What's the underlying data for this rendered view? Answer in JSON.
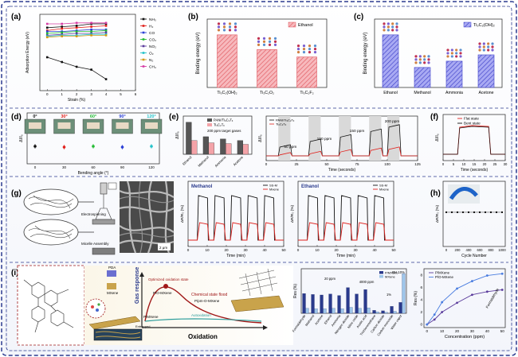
{
  "colors": {
    "frame": "#2b3a8f",
    "pink_bar": "#f4a3a8",
    "pink_edge": "#e0585f",
    "blue_bar": "#8e8ff0",
    "blue_edge": "#3f41c9",
    "black": "#111111",
    "red": "#e0201b",
    "green": "#22bb33",
    "blue": "#2a3fd6",
    "cyan": "#21c2c8",
    "gray_band": "#d9d9d9",
    "grey_bar": "#555555",
    "light_blue": "#9ec6ea",
    "navy": "#2a3a8c",
    "teal": "#2a9c9a",
    "purple": "#5b3c9c",
    "dashed": "#a01818"
  },
  "panels": {
    "a": {
      "label": "(a)"
    },
    "b": {
      "label": "(b)"
    },
    "c": {
      "label": "(c)"
    },
    "d": {
      "label": "(d)"
    },
    "e": {
      "label": "(e)"
    },
    "f": {
      "label": "(f)"
    },
    "g": {
      "label": "(g)"
    },
    "h": {
      "label": "(h)"
    },
    "i": {
      "label": "(i)"
    }
  },
  "chart_data": [
    {
      "id": "a",
      "type": "line",
      "ylabel": "Adsorption Energy (eV)",
      "xlabel": "Strain (%)",
      "x": [
        0,
        1,
        2,
        3,
        4
      ],
      "xticks": [
        "0",
        "1",
        "2",
        "3",
        "4",
        "5",
        "6"
      ],
      "xlim": [
        -0.5,
        6
      ],
      "ylim": [
        -0.75,
        0.05
      ],
      "series": [
        {
          "name": "NH₃",
          "color": "#111111",
          "values": [
            -0.09,
            -0.08,
            -0.07,
            -0.05,
            -0.05
          ]
        },
        {
          "name": "H₂",
          "color": "#e0201b",
          "values": [
            -0.12,
            -0.1,
            -0.09,
            -0.08,
            -0.07
          ]
        },
        {
          "name": "CO",
          "color": "#2a3fd6",
          "values": [
            -0.13,
            -0.13,
            -0.12,
            -0.11,
            -0.11
          ]
        },
        {
          "name": "CO₂",
          "color": "#22bb33",
          "values": [
            -0.15,
            -0.14,
            -0.13,
            -0.13,
            -0.12
          ]
        },
        {
          "name": "NO₂",
          "color": "#5b3c9c",
          "values": [
            -0.17,
            -0.16,
            -0.15,
            -0.15,
            -0.14
          ]
        },
        {
          "name": "O₂",
          "color": "#21c2c8",
          "values": [
            -0.18,
            -0.17,
            -0.17,
            -0.16,
            -0.16
          ]
        },
        {
          "name": "N₂",
          "color": "#d29a16",
          "values": [
            -0.19,
            -0.18,
            -0.18,
            -0.17,
            -0.17
          ]
        },
        {
          "name": "CH₄",
          "color": "#d63da4",
          "values": [
            -0.05,
            -0.05,
            -0.04,
            -0.04,
            -0.04
          ]
        },
        {
          "name": "",
          "color": "#111111",
          "values": [
            -0.4,
            -0.45,
            -0.5,
            -0.53,
            -0.63
          ]
        }
      ]
    },
    {
      "id": "b",
      "type": "bar",
      "ylabel": "Binding energy (eV)",
      "legend": "Ethanol",
      "categories": [
        "Ti₃C₂(OH)₂",
        "Ti₃C₂O₂",
        "Ti₃C₂F₂"
      ],
      "values": [
        1.0,
        0.72,
        0.58
      ],
      "ylim": [
        0,
        1.3
      ]
    },
    {
      "id": "c",
      "type": "bar",
      "ylabel": "Binding energy (eV)",
      "legend": "Ti₃C₂(OH)₂",
      "categories": [
        "Ethanol",
        "Methanol",
        "Ammonia",
        "Acetone"
      ],
      "values": [
        1.0,
        0.38,
        0.5,
        0.62
      ],
      "ylim": [
        0,
        1.3
      ]
    },
    {
      "id": "d",
      "type": "scatter",
      "ylabel": "ΔI/I₀",
      "xlabel": "Bending angle (°)",
      "xticks": [
        "0",
        "30",
        "60",
        "90",
        "120"
      ],
      "x": [
        0,
        30,
        60,
        90,
        120
      ],
      "values": [
        2.2,
        2.1,
        2.2,
        2.1,
        2.2
      ],
      "angle_labels": [
        "0°",
        "30°",
        "60°",
        "90°",
        "120°"
      ],
      "point_colors": [
        "#111111",
        "#e0201b",
        "#22bb33",
        "#2a3fd6",
        "#21c2c8"
      ]
    },
    {
      "id": "e1",
      "type": "bar",
      "ylabel": "ΔI/I₀",
      "title": "200 ppm target gases",
      "categories": [
        "Ethanol",
        "Methanol",
        "Ammonia",
        "Acetone"
      ],
      "series": [
        {
          "name": "PANI/Ti₃C₂Tₓ",
          "values": [
            4.2,
            2.3,
            2.0,
            1.8
          ]
        },
        {
          "name": "Ti₃C₂Tₓ",
          "values": [
            1.8,
            1.5,
            1.4,
            1.3
          ]
        }
      ],
      "ylim": [
        0,
        5
      ]
    },
    {
      "id": "e2",
      "type": "line",
      "ylabel": "ΔI/I₀",
      "xlabel": "Time (seconds)",
      "xticks": [
        "0",
        "25",
        "50",
        "75",
        "100",
        "125"
      ],
      "xlim": [
        0,
        125
      ],
      "annotations": [
        "50 ppm",
        "100 ppm",
        "150 ppm",
        "200 ppm"
      ],
      "series": [
        {
          "name": "PANI/Ti₃C₂Tₓ"
        },
        {
          "name": "Ti₃C₂Tₓ"
        }
      ],
      "pulses": [
        [
          10,
          20
        ],
        [
          35,
          45
        ],
        [
          60,
          70
        ],
        [
          85,
          95
        ],
        [
          100,
          110
        ]
      ],
      "pulse_heights_black": [
        0.5,
        0.75,
        0.95,
        1.2,
        1.4
      ],
      "pulse_heights_red": [
        0.15,
        0.2,
        0.28,
        0.35,
        0.4
      ]
    },
    {
      "id": "f",
      "type": "line",
      "ylabel": "ΔI/I₀",
      "xlabel": "Time (seconds)",
      "xticks": [
        "0",
        "5",
        "10",
        "15",
        "20",
        "25",
        "30"
      ],
      "xlim": [
        0,
        30
      ],
      "series": [
        {
          "name": "Flat state"
        },
        {
          "name": "Bent state"
        }
      ]
    },
    {
      "id": "g1",
      "type": "line",
      "title": "Methanol",
      "ylabel": "ΔR/R₀ (%)",
      "xlabel": "Time (min)",
      "xticks": [
        "0",
        "10",
        "20",
        "30",
        "40",
        "50"
      ],
      "xlim": [
        0,
        52
      ],
      "series": [
        {
          "name": "SS-M"
        },
        {
          "name": "Mxene"
        }
      ],
      "pulses": [
        [
          5,
          11
        ],
        [
          14,
          20
        ],
        [
          23,
          29
        ],
        [
          32,
          38
        ],
        [
          41,
          47
        ]
      ]
    },
    {
      "id": "g2",
      "type": "line",
      "title": "Ethanol",
      "ylabel": "ΔR/R₀ (%)",
      "xlabel": "Time (min)",
      "xticks": [
        "0",
        "10",
        "20",
        "30",
        "40",
        "50"
      ],
      "xlim": [
        0,
        52
      ],
      "series": [
        {
          "name": "SS-M"
        },
        {
          "name": "Mxene"
        }
      ],
      "pulses": [
        [
          5,
          11
        ],
        [
          14,
          20
        ],
        [
          23,
          29
        ],
        [
          32,
          38
        ],
        [
          41,
          47
        ]
      ]
    },
    {
      "id": "h",
      "type": "scatter",
      "ylabel": "ΔR/R₀ (%)",
      "xlabel": "Cycle Number",
      "xticks": [
        "0",
        "200",
        "400",
        "600",
        "800",
        "1000"
      ],
      "x": [
        0,
        100,
        200,
        300,
        400,
        500,
        600,
        700,
        800,
        900,
        1000
      ],
      "values": [
        2.1,
        2.1,
        2.1,
        2.1,
        2.1,
        2.1,
        2.1,
        2.1,
        2.1,
        2.1,
        2.1
      ],
      "ylim": [
        0,
        4
      ]
    },
    {
      "id": "i1",
      "type": "bar",
      "ylabel": "Res (%)",
      "categories": [
        "Formaldehyde",
        "Methanol",
        "Acetone",
        "Ethanol",
        "Ammonia",
        "Nitrogen dioxide",
        "Nitric oxide",
        "Acetic acid",
        "Trichloromethane",
        "Carbon dioxide",
        "Carbon monoxide",
        "Water vapor"
      ],
      "series": [
        {
          "name": "P/MXene",
          "values": [
            4.0,
            3.8,
            3.7,
            3.9,
            3.6,
            5.2,
            3.9,
            4.8,
            0.6,
            0.5,
            1.4,
            2.2
          ]
        },
        {
          "name": "MXene",
          "values": [
            1.0,
            0.9,
            0.9,
            1.0,
            0.9,
            1.2,
            1.0,
            1.1,
            0.3,
            0.2,
            0.4,
            8.0
          ]
        }
      ],
      "annotations": [
        "20 ppm",
        "4000 ppm",
        "1%",
        "RH 10%"
      ],
      "ylim": [
        0,
        9
      ]
    },
    {
      "id": "i2",
      "type": "line",
      "ylabel": "Res (%)",
      "xlabel": "Concentration (ppm)",
      "annotation": "Formaldehyde",
      "x": [
        0,
        5,
        10,
        20,
        30,
        40,
        50
      ],
      "xticks": [
        "0",
        "10",
        "20",
        "30",
        "40",
        "50"
      ],
      "yticks": [
        "0",
        "2",
        "4",
        "6",
        "8"
      ],
      "xlim": [
        -2,
        52
      ],
      "ylim": [
        -0.5,
        9
      ],
      "series": [
        {
          "name": "P/MXene",
          "color": "#5b3c9c",
          "values": [
            0,
            0.8,
            2.0,
            3.5,
            4.8,
            5.3,
            5.6
          ]
        },
        {
          "name": "P/O-MXene",
          "color": "#4a7de0",
          "values": [
            0,
            1.6,
            3.6,
            5.8,
            7.0,
            7.9,
            8.2
          ]
        }
      ]
    }
  ],
  "schematic": {
    "d_photos": [
      "0°",
      "30°",
      "60°",
      "90°",
      "120°"
    ],
    "g_labels": [
      "Electrospinning",
      "Micelle Assembly"
    ],
    "g_scale": "2 μm",
    "i_labels": {
      "pda": "PDA",
      "mxene": "MXene",
      "optimized": "Optimized oxidation state",
      "pomxene": "P/O-MXene",
      "chemical_flood": "Chemical state flood",
      "ppm": "P/pm-O-MXene",
      "pmxene": "P/MXene",
      "autoxidation": "Autoxidation",
      "gas_response": "Gas response",
      "oxidation": "Oxidation",
      "entrapped": "Entrapped",
      "cu": "Cu"
    }
  }
}
